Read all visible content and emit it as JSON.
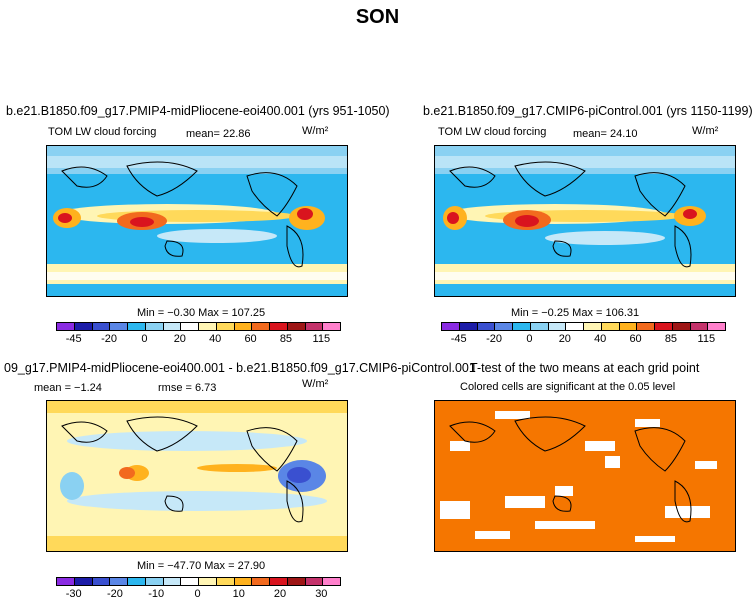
{
  "page": {
    "title": "SON"
  },
  "panels": [
    {
      "title": "b.e21.B1850.f09_g17.PMIP4-midPliocene-eoi400.001 (yrs 951-1050)",
      "left_label": "TOM LW cloud forcing",
      "stat_label": "mean=   22.86",
      "units": "W/m²",
      "min_max": "Min =   −0.30  Max =  107.25",
      "colorbar": {
        "colors": [
          "#8a2be2",
          "#1c1ca8",
          "#3a50d0",
          "#5a86e6",
          "#2cb7ef",
          "#8ad1f2",
          "#c6e8f8",
          "#ffffff",
          "#fff5b4",
          "#ffd95a",
          "#ffb21e",
          "#f26a1e",
          "#d9141e",
          "#9e1616",
          "#c4326b",
          "#ff80cc"
        ],
        "ticks": [
          "-45",
          "-20",
          "0",
          "20",
          "40",
          "60",
          "85",
          "115"
        ]
      }
    },
    {
      "title": "b.e21.B1850.f09_g17.CMIP6-piControl.001 (yrs 1150-1199)",
      "left_label": "TOM LW cloud forcing",
      "stat_label": "mean=   24.10",
      "units": "W/m²",
      "min_max": "Min =   −0.25  Max =  106.31",
      "colorbar": {
        "colors": [
          "#8a2be2",
          "#1c1ca8",
          "#3a50d0",
          "#5a86e6",
          "#2cb7ef",
          "#8ad1f2",
          "#c6e8f8",
          "#ffffff",
          "#fff5b4",
          "#ffd95a",
          "#ffb21e",
          "#f26a1e",
          "#d9141e",
          "#9e1616",
          "#c4326b",
          "#ff80cc"
        ],
        "ticks": [
          "-45",
          "-20",
          "0",
          "20",
          "40",
          "60",
          "85",
          "115"
        ]
      }
    },
    {
      "title": "09_g17.PMIP4-midPliocene-eoi400.001 - b.e21.B1850.f09_g17.CMIP6-piControl.001",
      "stat_label": "mean =   −1.24",
      "rmse_label": "rmse =    6.73",
      "units": "W/m²",
      "min_max": "Min = −47.70  Max =   27.90",
      "colorbar": {
        "colors": [
          "#8a2be2",
          "#1c1ca8",
          "#3a50d0",
          "#5a86e6",
          "#2cb7ef",
          "#8ad1f2",
          "#c6e8f8",
          "#ffffff",
          "#fff5b4",
          "#ffd95a",
          "#ffb21e",
          "#f26a1e",
          "#d9141e",
          "#9e1616",
          "#c4326b",
          "#ff80cc"
        ],
        "ticks": [
          "-30",
          "-20",
          "-10",
          "0",
          "10",
          "20",
          "30"
        ]
      }
    },
    {
      "title": "T-test of the two means at each grid point",
      "subtitle": "Colored cells are significant at the 0.05 level",
      "fill_color": "#f57600"
    }
  ]
}
